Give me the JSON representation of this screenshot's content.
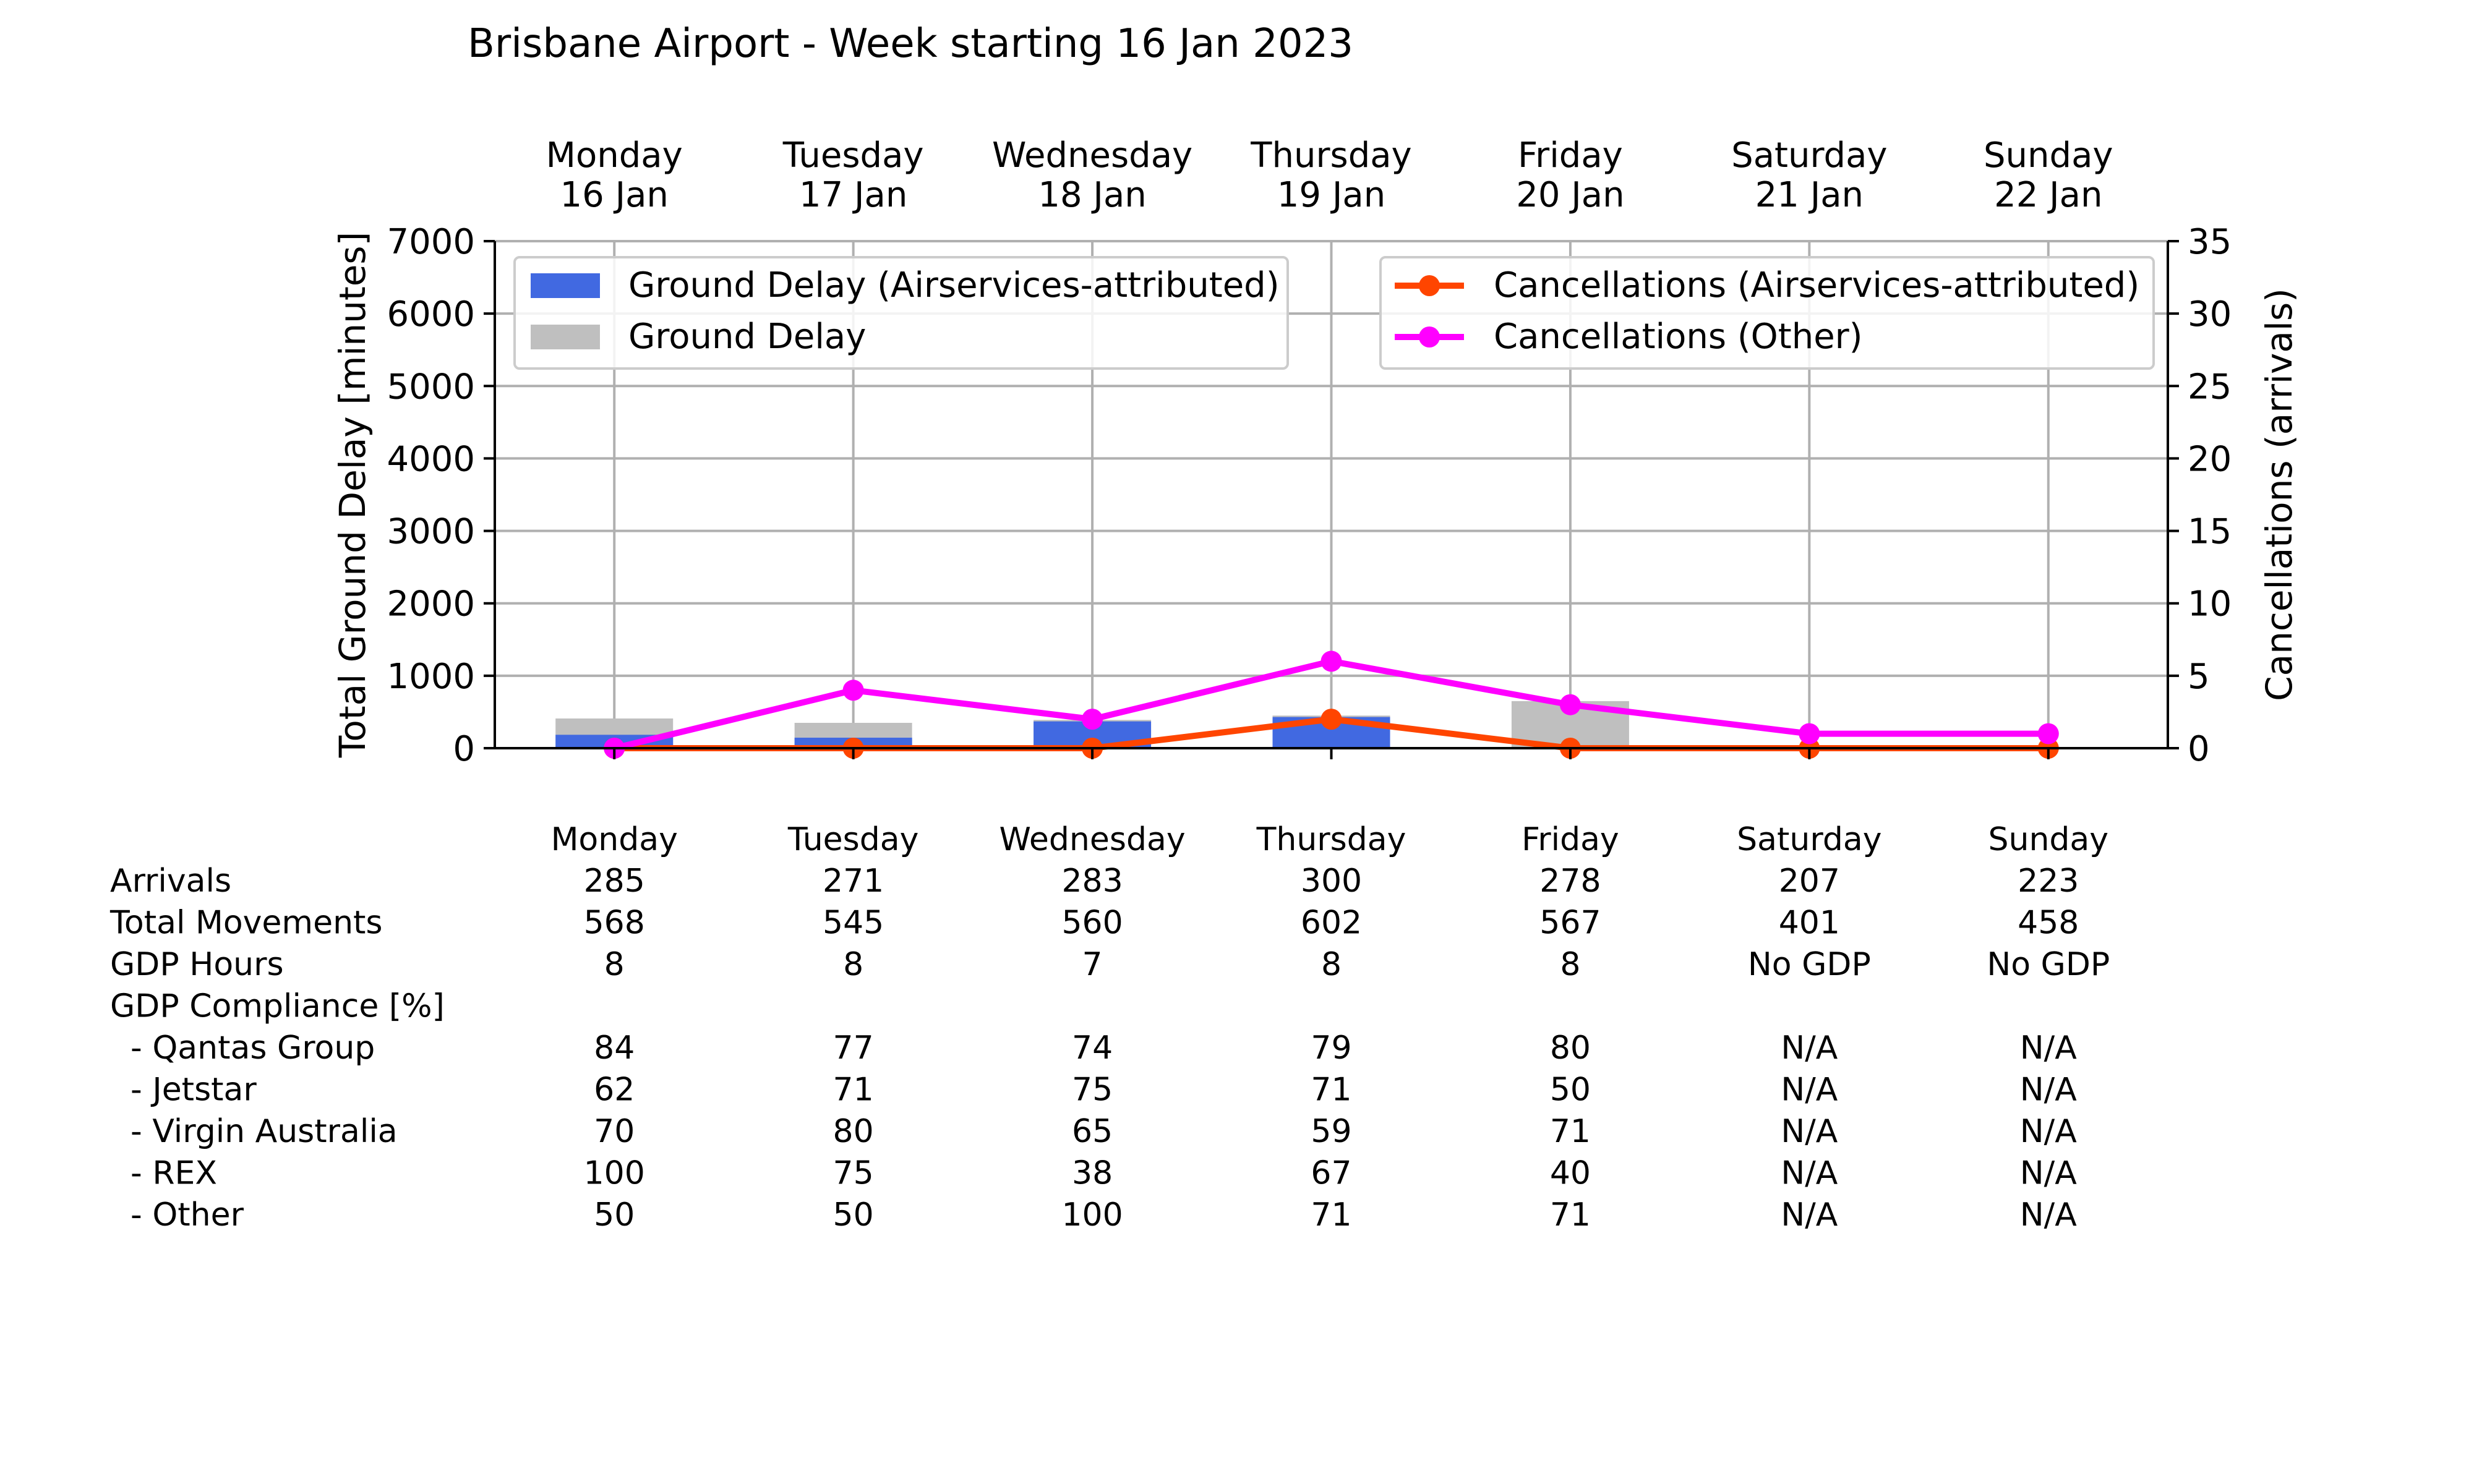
{
  "chart_data": {
    "type": "bar",
    "title": "Brisbane Airport - Week starting 16 Jan 2023",
    "days": [
      {
        "day": "Monday",
        "date": "16 Jan"
      },
      {
        "day": "Tuesday",
        "date": "17 Jan"
      },
      {
        "day": "Wednesday",
        "date": "18 Jan"
      },
      {
        "day": "Thursday",
        "date": "19 Jan"
      },
      {
        "day": "Friday",
        "date": "20 Jan"
      },
      {
        "day": "Saturday",
        "date": "21 Jan"
      },
      {
        "day": "Sunday",
        "date": "22 Jan"
      }
    ],
    "y_left": {
      "label": "Total Ground Delay [minutes]",
      "lim": [
        0,
        7000
      ],
      "ticks": [
        0,
        1000,
        2000,
        3000,
        4000,
        5000,
        6000,
        7000
      ]
    },
    "y_right": {
      "label": "Cancellations (arrivals)",
      "lim": [
        0,
        35
      ],
      "ticks": [
        0,
        5,
        10,
        15,
        20,
        25,
        30,
        35
      ]
    },
    "grid": true,
    "bar_series": [
      {
        "name": "Ground Delay",
        "color": "#bfbfbf",
        "values": [
          410,
          350,
          390,
          450,
          650,
          0,
          0
        ]
      },
      {
        "name": "Ground Delay (Airservices-attributed)",
        "color": "#4169e1",
        "values": [
          185,
          145,
          370,
          430,
          0,
          0,
          0
        ]
      }
    ],
    "line_series": [
      {
        "name": "Cancellations (Airservices-attributed)",
        "color": "#ff4500",
        "values": [
          0,
          0,
          0,
          2,
          0,
          0,
          0
        ]
      },
      {
        "name": "Cancellations (Other)",
        "color": "#ff00ff",
        "values": [
          0,
          4,
          2,
          6,
          3,
          1,
          1
        ]
      }
    ],
    "legend_left": {
      "placement": "upper-left",
      "entries": [
        "Ground Delay (Airservices-attributed)",
        "Ground Delay"
      ]
    },
    "legend_right": {
      "placement": "upper-right",
      "entries": [
        "Cancellations (Airservices-attributed)",
        "Cancellations (Other)"
      ]
    },
    "table": {
      "columns": [
        "Monday",
        "Tuesday",
        "Wednesday",
        "Thursday",
        "Friday",
        "Saturday",
        "Sunday"
      ],
      "rows": [
        {
          "label": "Arrivals",
          "values": [
            "285",
            "271",
            "283",
            "300",
            "278",
            "207",
            "223"
          ]
        },
        {
          "label": "Total Movements",
          "values": [
            "568",
            "545",
            "560",
            "602",
            "567",
            "401",
            "458"
          ]
        },
        {
          "label": "GDP Hours",
          "values": [
            "8",
            "8",
            "7",
            "8",
            "8",
            "No GDP",
            "No GDP"
          ]
        },
        {
          "label": "GDP Compliance [%]",
          "values": [
            "",
            "",
            "",
            "",
            "",
            "",
            ""
          ]
        },
        {
          "label": "  - Qantas Group",
          "values": [
            "84",
            "77",
            "74",
            "79",
            "80",
            "N/A",
            "N/A"
          ]
        },
        {
          "label": "  - Jetstar",
          "values": [
            "62",
            "71",
            "75",
            "71",
            "50",
            "N/A",
            "N/A"
          ]
        },
        {
          "label": "  - Virgin Australia",
          "values": [
            "70",
            "80",
            "65",
            "59",
            "71",
            "N/A",
            "N/A"
          ]
        },
        {
          "label": "  - REX",
          "values": [
            "100",
            "75",
            "38",
            "67",
            "40",
            "N/A",
            "N/A"
          ]
        },
        {
          "label": "  - Other",
          "values": [
            "50",
            "50",
            "100",
            "71",
            "71",
            "N/A",
            "N/A"
          ]
        }
      ]
    }
  }
}
